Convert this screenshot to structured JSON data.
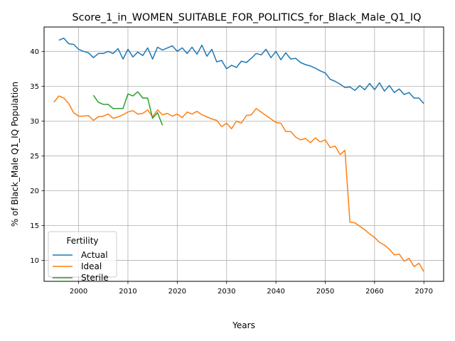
{
  "chart_data": {
    "type": "line",
    "title": "Score_1_in_WOMEN_SUITABLE_FOR_POLITICS_for_Black_Male_Q1_IQ",
    "xlabel": "Years",
    "ylabel": "% of Black_Male Q1_IQ Population",
    "xlim": [
      1993,
      2074
    ],
    "ylim": [
      7,
      43.5
    ],
    "xticks": [
      2000,
      2010,
      2020,
      2030,
      2040,
      2050,
      2060,
      2070
    ],
    "yticks": [
      10,
      15,
      20,
      25,
      30,
      35,
      40
    ],
    "grid": true,
    "legend": {
      "title": "Fertility",
      "placement": "lower-left"
    },
    "series": [
      {
        "name": "Actual",
        "color": "#1f77b4",
        "x": [
          1996,
          1997,
          1998,
          1999,
          2000,
          2001,
          2002,
          2003,
          2004,
          2005,
          2006,
          2007,
          2008,
          2009,
          2010,
          2011,
          2012,
          2013,
          2014,
          2015,
          2016,
          2017,
          2018,
          2019,
          2020,
          2021,
          2022,
          2023,
          2024,
          2025,
          2026,
          2027,
          2028,
          2029,
          2030,
          2031,
          2032,
          2033,
          2034,
          2035,
          2036,
          2037,
          2038,
          2039,
          2040,
          2041,
          2042,
          2043,
          2044,
          2045,
          2046,
          2047,
          2048,
          2049,
          2050,
          2051,
          2052,
          2053,
          2054,
          2055,
          2056,
          2057,
          2058,
          2059,
          2060,
          2061,
          2062,
          2063,
          2064,
          2065,
          2066,
          2067,
          2068,
          2069,
          2070
        ],
        "y": [
          41.6,
          41.9,
          41.1,
          41.0,
          40.3,
          40.0,
          39.8,
          39.1,
          39.7,
          39.7,
          40.0,
          39.7,
          40.4,
          38.9,
          40.3,
          39.2,
          39.9,
          39.4,
          40.5,
          38.9,
          40.6,
          40.2,
          40.5,
          40.8,
          40.0,
          40.5,
          39.7,
          40.6,
          39.6,
          40.9,
          39.3,
          40.3,
          38.5,
          38.7,
          37.5,
          38.0,
          37.7,
          38.6,
          38.4,
          39.0,
          39.7,
          39.5,
          40.3,
          39.1,
          40.0,
          38.8,
          39.8,
          38.9,
          39.0,
          38.4,
          38.1,
          37.9,
          37.6,
          37.2,
          36.9,
          36.0,
          35.7,
          35.3,
          34.8,
          34.9,
          34.4,
          35.1,
          34.5,
          35.4,
          34.5,
          35.5,
          34.3,
          35.1,
          34.1,
          34.6,
          33.8,
          34.1,
          33.3,
          33.3,
          32.5
        ]
      },
      {
        "name": "Ideal",
        "color": "#ff7f0e",
        "x": [
          1995,
          1996,
          1997,
          1998,
          1999,
          2000,
          2001,
          2002,
          2003,
          2004,
          2005,
          2006,
          2007,
          2008,
          2009,
          2010,
          2011,
          2012,
          2013,
          2014,
          2015,
          2016,
          2017,
          2018,
          2019,
          2020,
          2021,
          2022,
          2023,
          2024,
          2025,
          2026,
          2027,
          2028,
          2029,
          2030,
          2031,
          2032,
          2033,
          2034,
          2035,
          2036,
          2037,
          2038,
          2039,
          2040,
          2041,
          2042,
          2043,
          2044,
          2045,
          2046,
          2047,
          2048,
          2049,
          2050,
          2051,
          2052,
          2053,
          2054,
          2055,
          2056,
          2057,
          2058,
          2059,
          2060,
          2061,
          2062,
          2063,
          2064,
          2065,
          2066,
          2067,
          2068,
          2069,
          2070
        ],
        "y": [
          32.7,
          33.6,
          33.3,
          32.5,
          31.2,
          30.7,
          30.7,
          30.8,
          30.1,
          30.6,
          30.7,
          31.0,
          30.4,
          30.6,
          30.9,
          31.3,
          31.5,
          31.0,
          31.1,
          31.6,
          30.6,
          31.6,
          30.9,
          31.1,
          30.7,
          31.0,
          30.5,
          31.3,
          31.0,
          31.4,
          30.9,
          30.6,
          30.3,
          30.1,
          29.2,
          29.7,
          28.9,
          30.0,
          29.7,
          30.8,
          30.9,
          31.8,
          31.3,
          30.8,
          30.3,
          29.8,
          29.7,
          28.5,
          28.5,
          27.7,
          27.3,
          27.5,
          26.9,
          27.6,
          27.0,
          27.3,
          26.2,
          26.4,
          25.2,
          25.8,
          15.5,
          15.4,
          14.9,
          14.4,
          13.8,
          13.3,
          12.6,
          12.2,
          11.6,
          10.8,
          10.9,
          9.9,
          10.3,
          9.1,
          9.6,
          8.4
        ]
      },
      {
        "name": "Sterile",
        "color": "#2ca02c",
        "x": [
          2003,
          2004,
          2005,
          2006,
          2007,
          2008,
          2009,
          2010,
          2011,
          2012,
          2013,
          2014,
          2015,
          2016,
          2017
        ],
        "y": [
          33.7,
          32.7,
          32.4,
          32.4,
          31.8,
          31.8,
          31.8,
          33.9,
          33.6,
          34.2,
          33.3,
          33.3,
          30.4,
          31.2,
          29.4
        ]
      }
    ]
  }
}
